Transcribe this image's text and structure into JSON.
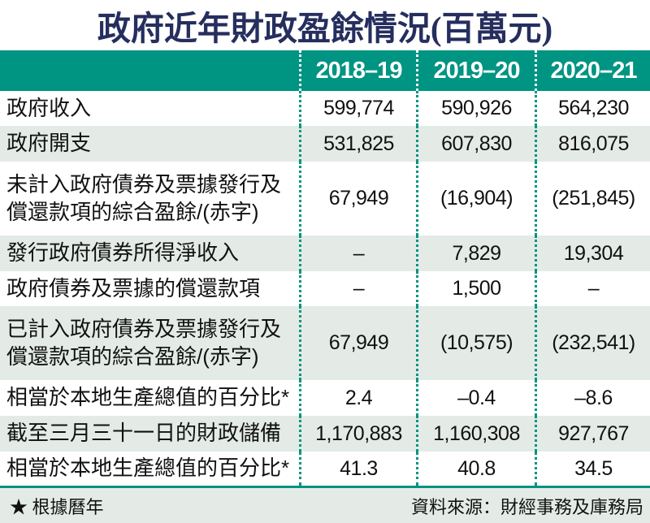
{
  "title": "政府近年財政盈餘情況(百萬元)",
  "colors": {
    "header_teal": "#009482",
    "light_row": "#e4ebe6",
    "title_navy": "#252e5e",
    "header_text": "#ffffff",
    "body_text": "#111111"
  },
  "chart_data": {
    "type": "table",
    "title": "政府近年財政盈餘情況(百萬元)",
    "columns": [
      "2018–19",
      "2019–20",
      "2020–21"
    ],
    "rows": [
      {
        "label": "政府收入",
        "values": [
          "599,774",
          "590,926",
          "564,230"
        ]
      },
      {
        "label": "政府開支",
        "values": [
          "531,825",
          "607,830",
          "816,075"
        ]
      },
      {
        "label": "未計入政府債券及票據發行及償還款項的綜合盈餘/(赤字)",
        "values": [
          "67,949",
          "(16,904)",
          "(251,845)"
        ]
      },
      {
        "label": "發行政府債券所得淨收入",
        "values": [
          "–",
          "7,829",
          "19,304"
        ]
      },
      {
        "label": "政府債券及票據的償還款項",
        "values": [
          "–",
          "1,500",
          "–"
        ]
      },
      {
        "label": "已計入政府債券及票據發行及償還款項的綜合盈餘/(赤字)",
        "values": [
          "67,949",
          "(10,575)",
          "(232,541)"
        ]
      },
      {
        "label": "相當於本地生產總值的百分比*",
        "values": [
          "2.4",
          "–0.4",
          "–8.6"
        ]
      },
      {
        "label": "截至三月三十一日的財政儲備",
        "values": [
          "1,170,883",
          "1,160,308",
          "927,767"
        ]
      },
      {
        "label": "相當於本地生產總值的百分比*",
        "values": [
          "41.3",
          "40.8",
          "34.5"
        ]
      }
    ]
  },
  "footer": {
    "note": "★ 根據曆年",
    "source": "資料來源：財經事務及庫務局"
  }
}
